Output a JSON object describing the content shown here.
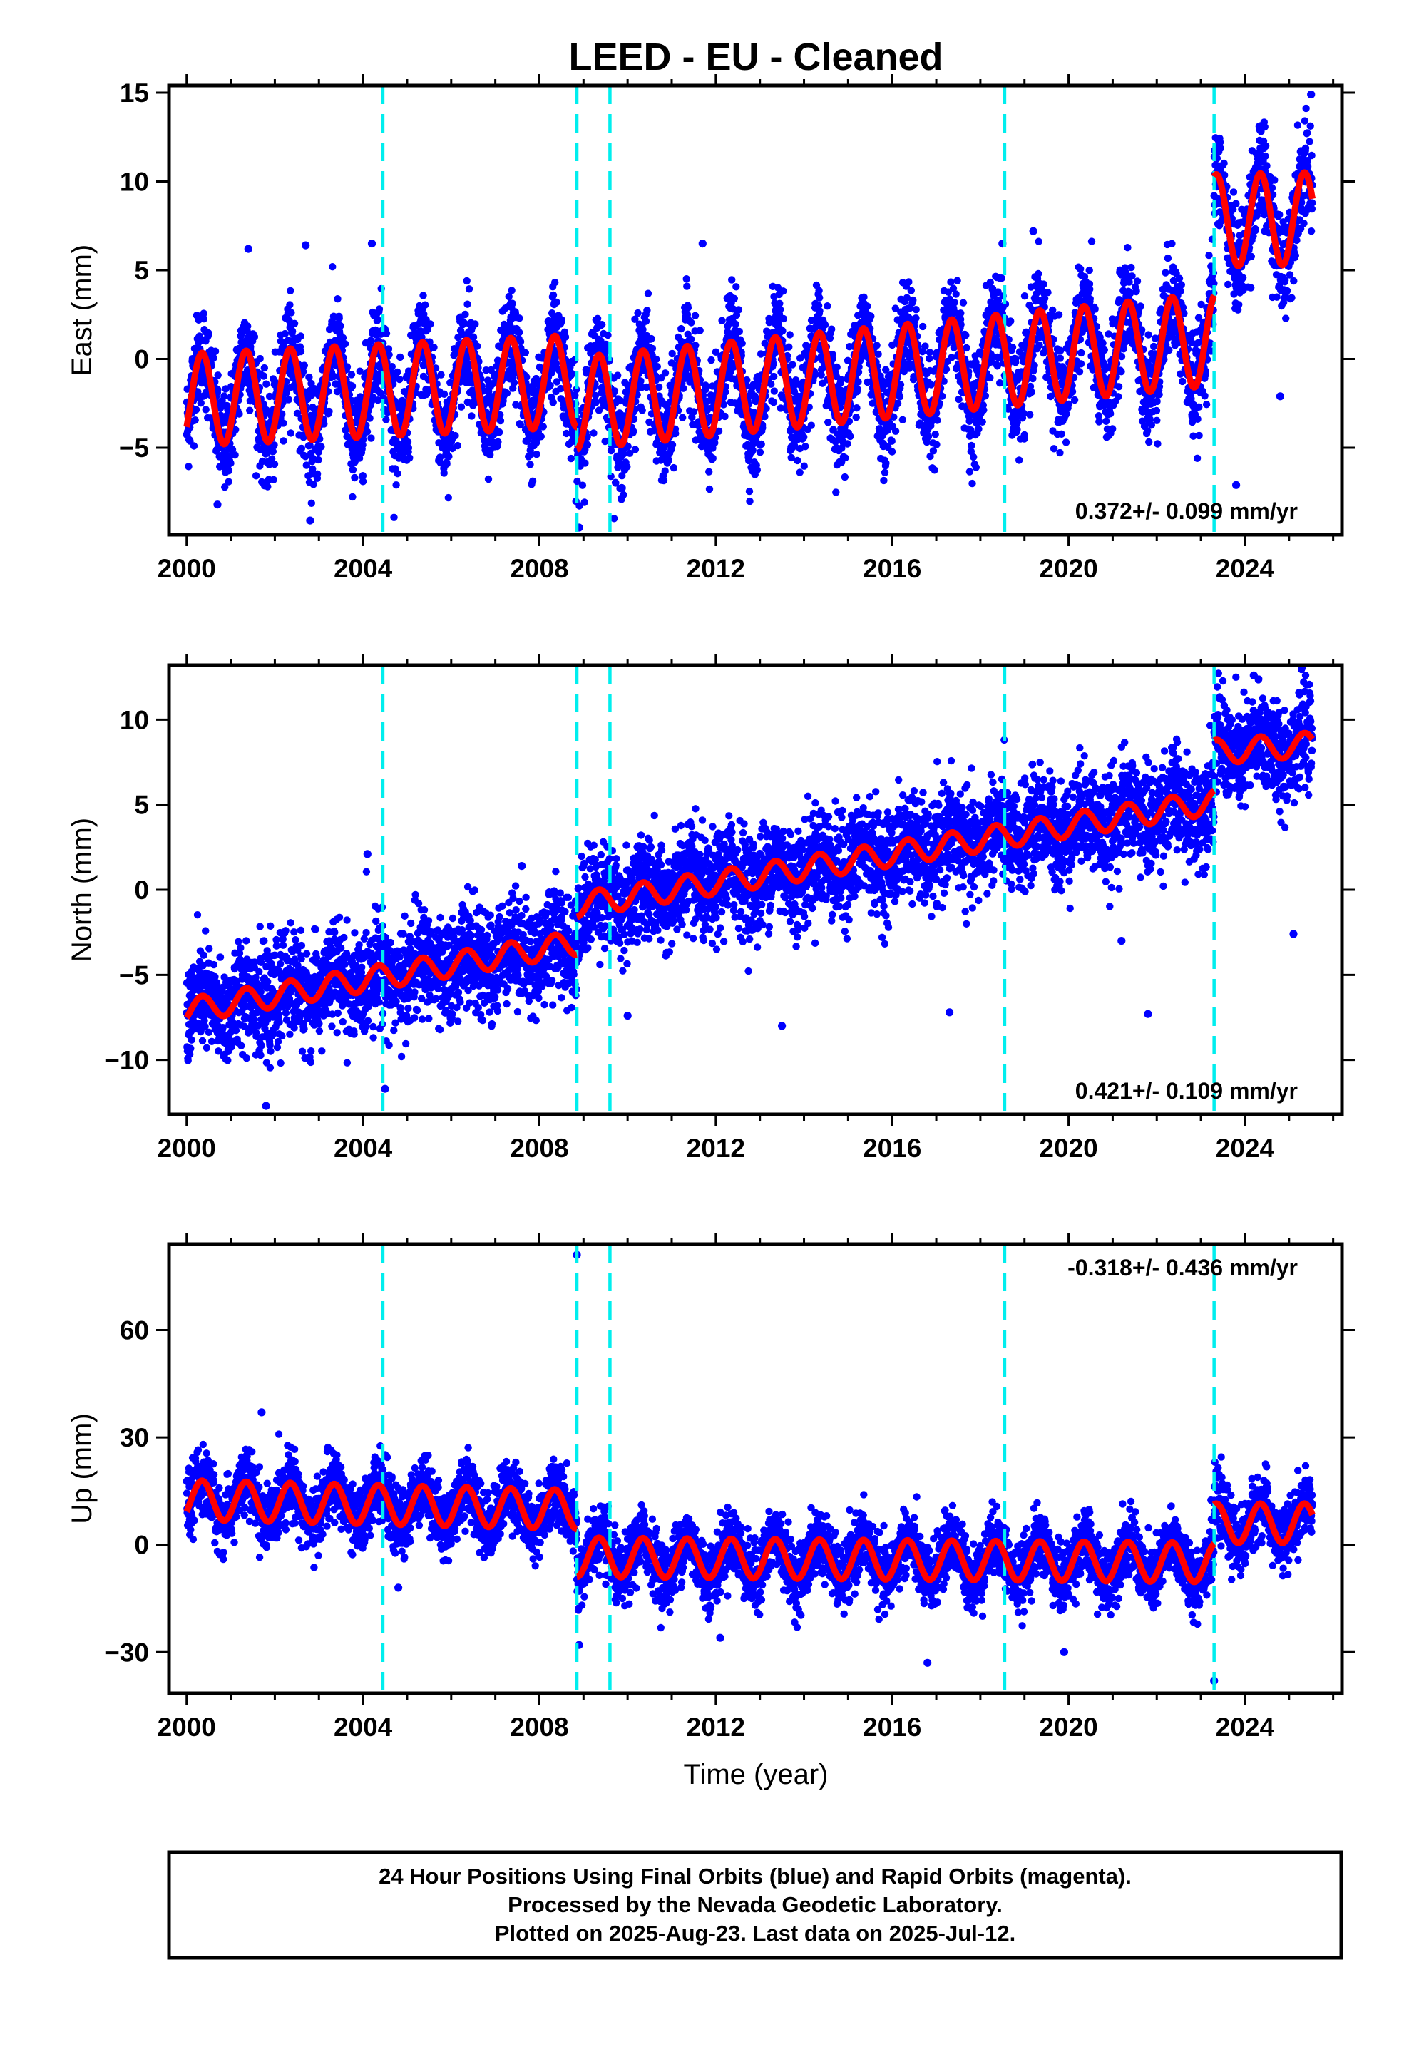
{
  "title": "LEED  - EU - Cleaned",
  "xlabel": "Time (year)",
  "chart_data": [
    {
      "type": "scatter",
      "ylabel": "East (mm)",
      "xlim": [
        1999.6,
        2026.2
      ],
      "ylim": [
        -9.9,
        15.4
      ],
      "xticks": [
        2000,
        2004,
        2008,
        2012,
        2016,
        2020,
        2024
      ],
      "yticks": [
        -5,
        0,
        5,
        10,
        15
      ],
      "tick_labels": [
        "−5",
        "0",
        "5",
        "10",
        "15"
      ],
      "rate_text": "0.372+/- 0.099 mm/yr",
      "breaks": [
        2004.45,
        2008.85,
        2009.6,
        2018.55,
        2023.3
      ],
      "model_segments": [
        {
          "t0": 2000.0,
          "t1": 2008.85,
          "offset": -2.3,
          "rate": 0.12,
          "amp": 2.6
        },
        {
          "t0": 2008.85,
          "t1": 2023.3,
          "offset": -2.5,
          "rate": 0.25,
          "amp": 2.6
        },
        {
          "t0": 2023.3,
          "t1": 2025.53,
          "offset": 7.8,
          "rate": 0.05,
          "amp": 2.6
        }
      ],
      "scatter_sigma": 1.4,
      "outliers": [
        [
          2000.7,
          -8.2
        ],
        [
          2001.4,
          6.2
        ],
        [
          2002.7,
          6.4
        ],
        [
          2002.8,
          -9.1
        ],
        [
          2004.2,
          6.5
        ],
        [
          2008.9,
          -9.5
        ],
        [
          2011.7,
          6.5
        ],
        [
          2018.5,
          6.5
        ],
        [
          2023.8,
          -7.1
        ],
        [
          2024.8,
          -2.1
        ],
        [
          2025.5,
          14.9
        ],
        [
          2019.2,
          7.2
        ]
      ]
    },
    {
      "type": "scatter",
      "ylabel": "North (mm)",
      "xlim": [
        1999.6,
        2026.2
      ],
      "ylim": [
        -13.2,
        13.2
      ],
      "xticks": [
        2000,
        2004,
        2008,
        2012,
        2016,
        2020,
        2024
      ],
      "yticks": [
        -10,
        -5,
        0,
        5,
        10
      ],
      "tick_labels": [
        "−10",
        "−5",
        "0",
        "5",
        "10"
      ],
      "rate_text": "0.421+/- 0.109 mm/yr",
      "breaks": [
        2004.45,
        2008.85,
        2009.6,
        2018.55,
        2023.3
      ],
      "model_segments": [
        {
          "t0": 2000.0,
          "t1": 2008.85,
          "offset": -7.1,
          "rate": 0.45,
          "amp": 0.7
        },
        {
          "t0": 2008.85,
          "t1": 2023.3,
          "offset": -0.9,
          "rate": 0.42,
          "amp": 0.7
        },
        {
          "t0": 2023.3,
          "t1": 2025.53,
          "offset": 8.1,
          "rate": 0.2,
          "amp": 0.7
        }
      ],
      "scatter_sigma": 1.5,
      "outliers": [
        [
          2001.8,
          -12.7
        ],
        [
          2004.1,
          2.1
        ],
        [
          2007.6,
          1.4
        ],
        [
          2010.0,
          -7.4
        ],
        [
          2013.5,
          -8.0
        ],
        [
          2017.3,
          -7.2
        ],
        [
          2021.2,
          -3.0
        ],
        [
          2021.8,
          -7.3
        ],
        [
          2024.2,
          12.6
        ],
        [
          2025.1,
          -2.6
        ],
        [
          2004.5,
          -11.7
        ]
      ]
    },
    {
      "type": "scatter",
      "ylabel": "Up (mm)",
      "xlim": [
        1999.6,
        2026.2
      ],
      "ylim": [
        -41.5,
        84.0
      ],
      "xticks": [
        2000,
        2004,
        2008,
        2012,
        2016,
        2020,
        2024
      ],
      "yticks": [
        -30,
        0,
        30,
        60
      ],
      "tick_labels": [
        "−30",
        "0",
        "30",
        "60"
      ],
      "rate_text": "-0.318+/- 0.436 mm/yr",
      "breaks": [
        2004.45,
        2008.85,
        2009.6,
        2018.55,
        2023.3
      ],
      "model_segments": [
        {
          "t0": 2000.0,
          "t1": 2008.85,
          "offset": 12.5,
          "rate": -0.3,
          "amp": 5.5
        },
        {
          "t0": 2008.85,
          "t1": 2023.3,
          "offset": -3.5,
          "rate": -0.1,
          "amp": 5.5
        },
        {
          "t0": 2023.3,
          "t1": 2025.53,
          "offset": 6.0,
          "rate": 0.0,
          "amp": 5.5
        }
      ],
      "scatter_sigma": 4.5,
      "outliers": [
        [
          2001.7,
          37
        ],
        [
          2008.85,
          81
        ],
        [
          2008.9,
          -28
        ],
        [
          2016.8,
          -33
        ],
        [
          2023.3,
          -38
        ],
        [
          2004.8,
          -12
        ],
        [
          2012.1,
          -26
        ],
        [
          2019.9,
          -30
        ]
      ]
    }
  ],
  "footer": {
    "line1": "24 Hour Positions Using Final Orbits (blue) and Rapid Orbits (magenta).",
    "line2": "Processed by the Nevada Geodetic Laboratory.",
    "line3": "Plotted on 2025-Aug-23. Last data on 2025-Jul-12."
  },
  "colors": {
    "points": "#0000ff",
    "model": "#ff0000",
    "breaks": "#00eeee",
    "frame": "#000000"
  }
}
